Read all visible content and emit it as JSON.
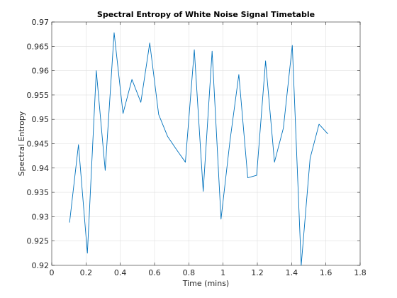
{
  "chart_data": {
    "type": "line",
    "title": "Spectral Entropy of White Noise Signal Timetable",
    "xlabel": "Time (mins)",
    "ylabel": "Spectral Entropy",
    "xlim": [
      0,
      1.8
    ],
    "ylim": [
      0.92,
      0.97
    ],
    "xticks": [
      0,
      0.2,
      0.4,
      0.6,
      0.8,
      1,
      1.2,
      1.4,
      1.6,
      1.8
    ],
    "xtick_labels": [
      "0",
      "0.2",
      "0.4",
      "0.6",
      "0.8",
      "1",
      "1.2",
      "1.4",
      "1.6",
      "1.8"
    ],
    "yticks": [
      0.92,
      0.925,
      0.93,
      0.935,
      0.94,
      0.945,
      0.95,
      0.955,
      0.96,
      0.965,
      0.97
    ],
    "ytick_labels": [
      "0.92",
      "0.925",
      "0.93",
      "0.935",
      "0.94",
      "0.945",
      "0.95",
      "0.955",
      "0.96",
      "0.965",
      "0.97"
    ],
    "grid": true,
    "line_color": "#0072BD",
    "series": [
      {
        "x": [
          0.104,
          0.156,
          0.208,
          0.26,
          0.312,
          0.364,
          0.416,
          0.468,
          0.52,
          0.572,
          0.624,
          0.676,
          0.728,
          0.78,
          0.832,
          0.884,
          0.936,
          0.988,
          1.04,
          1.092,
          1.144,
          1.196,
          1.248,
          1.3,
          1.352,
          1.404,
          1.456,
          1.508,
          1.56,
          1.612
        ],
        "y": [
          0.9288,
          0.9448,
          0.9225,
          0.96,
          0.9395,
          0.9678,
          0.9512,
          0.9582,
          0.9535,
          0.9657,
          0.951,
          0.9465,
          0.9438,
          0.9412,
          0.9643,
          0.9352,
          0.964,
          0.9295,
          0.9455,
          0.9592,
          0.938,
          0.9385,
          0.962,
          0.9412,
          0.9482,
          0.9652,
          0.92,
          0.942,
          0.949,
          0.947
        ]
      }
    ]
  }
}
